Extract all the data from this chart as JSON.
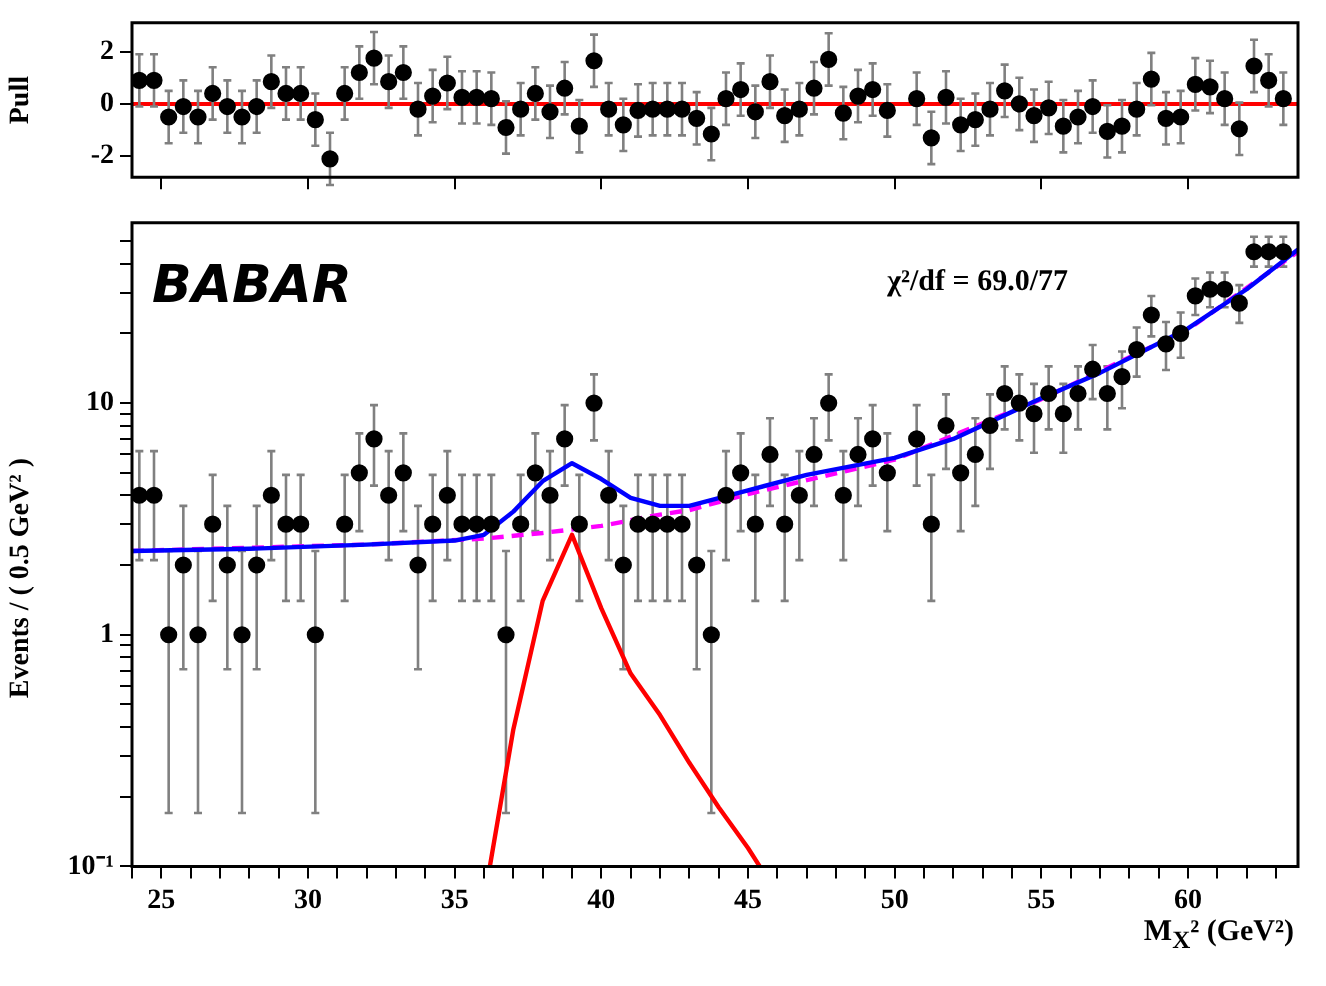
{
  "chart_data": [
    {
      "type": "scatter",
      "ylabel": "Pull",
      "tick_labels": "y",
      "xlim": [
        24,
        63.75
      ],
      "xticks": [
        25,
        30,
        35,
        40,
        45,
        50,
        55,
        60
      ],
      "ylim": [
        -2.8,
        3.1
      ],
      "yticks": [
        -2,
        0,
        2
      ],
      "ref_lines": [
        {
          "axis": "y",
          "value": 0,
          "color": "#ff0000"
        }
      ],
      "x": [
        24.25,
        24.75,
        25.25,
        25.75,
        26.25,
        26.75,
        27.25,
        27.75,
        28.25,
        28.75,
        29.25,
        29.75,
        30.25,
        30.75,
        31.25,
        31.75,
        32.25,
        32.75,
        33.25,
        33.75,
        34.25,
        34.75,
        35.25,
        35.75,
        36.25,
        36.75,
        37.25,
        37.75,
        38.25,
        38.75,
        39.25,
        39.75,
        40.25,
        40.75,
        41.25,
        41.75,
        42.25,
        42.75,
        43.25,
        43.75,
        44.25,
        44.75,
        45.25,
        45.75,
        46.25,
        46.75,
        47.25,
        47.75,
        48.25,
        48.75,
        49.25,
        49.75,
        50.25,
        50.75,
        51.25,
        51.75,
        52.25,
        52.75,
        53.25,
        53.75,
        54.25,
        54.75,
        55.25,
        55.75,
        56.25,
        56.75,
        57.25,
        57.75,
        58.25,
        58.75,
        59.25,
        59.75,
        60.25,
        60.75,
        61.25,
        61.75,
        62.25,
        62.75,
        63.25
      ],
      "series": [
        {
          "color": "#000000",
          "marker": "circle",
          "values": [
            0.9,
            0.9,
            -0.5,
            -0.1,
            -0.5,
            0.4,
            -0.1,
            -0.5,
            -0.1,
            0.85,
            0.4,
            0.4,
            -0.6,
            -2.1,
            0.4,
            1.2,
            1.75,
            0.85,
            1.2,
            -0.2,
            0.3,
            0.8,
            0.25,
            0.25,
            0.2,
            -0.9,
            -0.2,
            0.4,
            -0.3,
            0.6,
            -0.85,
            1.65,
            -0.2,
            -0.8,
            -0.25,
            -0.2,
            -0.2,
            -0.2,
            -0.55,
            -1.15,
            0.2,
            0.55,
            -0.3,
            0.85,
            -0.45,
            -0.2,
            0.6,
            1.7,
            -0.35,
            0.3,
            0.55,
            -0.25,
            null,
            0.2,
            -1.3,
            0.25,
            -0.8,
            -0.6,
            -0.2,
            0.5,
            0,
            -0.45,
            -0.15,
            -0.85,
            -0.5,
            -0.1,
            -1.05,
            -0.85,
            -0.2,
            0.95,
            -0.55,
            -0.5,
            0.75,
            0.65,
            0.2,
            -0.95,
            1.45,
            0.9,
            0.2
          ],
          "errors": [
            1,
            1,
            1,
            1,
            1,
            1,
            1,
            1,
            1,
            1,
            1,
            1,
            1,
            1,
            1,
            1,
            1,
            1,
            1,
            1,
            1,
            1,
            1,
            1,
            1,
            1,
            1,
            1,
            1,
            1,
            1,
            1,
            1,
            1,
            1,
            1,
            1,
            1,
            1,
            1,
            1,
            1,
            1,
            1,
            1,
            1,
            1,
            1,
            1,
            1,
            1,
            1,
            null,
            1,
            1,
            1,
            1,
            1,
            1,
            1,
            1,
            1,
            1,
            1,
            1,
            1,
            1,
            1,
            1,
            1,
            1,
            1,
            1,
            1,
            1,
            1,
            1,
            1,
            1
          ]
        }
      ]
    },
    {
      "type": "scatter",
      "ylabel": "Events / ( 0.5 GeV² )",
      "xlabel": "M$_{X}$² (GeV²)",
      "log": "y",
      "annotations": [
        "BABAR",
        "χ²/df = 69.0/77"
      ],
      "xlim": [
        24,
        63.75
      ],
      "xticks": [
        {
          "value": 24,
          "label": null
        },
        25,
        {
          "value": 26,
          "label": null
        },
        {
          "value": 27,
          "label": null
        },
        {
          "value": 28,
          "label": null
        },
        {
          "value": 29,
          "label": null
        },
        30,
        {
          "value": 31,
          "label": null
        },
        {
          "value": 32,
          "label": null
        },
        {
          "value": 33,
          "label": null
        },
        {
          "value": 34,
          "label": null
        },
        35,
        {
          "value": 36,
          "label": null
        },
        {
          "value": 37,
          "label": null
        },
        {
          "value": 38,
          "label": null
        },
        {
          "value": 39,
          "label": null
        },
        40,
        {
          "value": 41,
          "label": null
        },
        {
          "value": 42,
          "label": null
        },
        {
          "value": 43,
          "label": null
        },
        {
          "value": 44,
          "label": null
        },
        45,
        {
          "value": 46,
          "label": null
        },
        {
          "value": 47,
          "label": null
        },
        {
          "value": 48,
          "label": null
        },
        {
          "value": 49,
          "label": null
        },
        50,
        {
          "value": 51,
          "label": null
        },
        {
          "value": 52,
          "label": null
        },
        {
          "value": 53,
          "label": null
        },
        {
          "value": 54,
          "label": null
        },
        55,
        {
          "value": 56,
          "label": null
        },
        {
          "value": 57,
          "label": null
        },
        {
          "value": 58,
          "label": null
        },
        {
          "value": 59,
          "label": null
        },
        60,
        {
          "value": 61,
          "label": null
        },
        {
          "value": 62,
          "label": null
        },
        {
          "value": 63,
          "label": null
        }
      ],
      "ylim": [
        0.1,
        60
      ],
      "yticks": [
        {
          "value": 0.1,
          "label": "10⁻¹"
        },
        {
          "value": 0.2,
          "label": null
        },
        {
          "value": 0.3,
          "label": null
        },
        {
          "value": 0.4,
          "label": null
        },
        {
          "value": 0.5,
          "label": null
        },
        {
          "value": 0.6,
          "label": null
        },
        {
          "value": 0.7,
          "label": null
        },
        {
          "value": 0.8,
          "label": null
        },
        {
          "value": 0.9,
          "label": null
        },
        1,
        {
          "value": 2,
          "label": null
        },
        {
          "value": 3,
          "label": null
        },
        {
          "value": 4,
          "label": null
        },
        {
          "value": 5,
          "label": null
        },
        {
          "value": 6,
          "label": null
        },
        {
          "value": 7,
          "label": null
        },
        {
          "value": 8,
          "label": null
        },
        {
          "value": 9,
          "label": null
        },
        10,
        {
          "value": 20,
          "label": null
        },
        {
          "value": 30,
          "label": null
        },
        {
          "value": 40,
          "label": null
        },
        {
          "value": 50,
          "label": null
        }
      ],
      "x": [
        24.25,
        24.75,
        25.25,
        25.75,
        26.25,
        26.75,
        27.25,
        27.75,
        28.25,
        28.75,
        29.25,
        29.75,
        30.25,
        30.75,
        31.25,
        31.75,
        32.25,
        32.75,
        33.25,
        33.75,
        34.25,
        34.75,
        35.25,
        35.75,
        36.25,
        36.75,
        37.25,
        37.75,
        38.25,
        38.75,
        39.25,
        39.75,
        40.25,
        40.75,
        41.25,
        41.75,
        42.25,
        42.75,
        43.25,
        43.75,
        44.25,
        44.75,
        45.25,
        45.75,
        46.25,
        46.75,
        47.25,
        47.75,
        48.25,
        48.75,
        49.25,
        49.75,
        50.25,
        50.75,
        51.25,
        51.75,
        52.25,
        52.75,
        53.25,
        53.75,
        54.25,
        54.75,
        55.25,
        55.75,
        56.25,
        56.75,
        57.25,
        57.75,
        58.25,
        58.75,
        59.25,
        59.75,
        60.25,
        60.75,
        61.25,
        61.75,
        62.25,
        62.75,
        63.25
      ],
      "series": [
        {
          "color": "#000000",
          "marker": "circle",
          "values": [
            4,
            4,
            1,
            2,
            1,
            3,
            2,
            1,
            2,
            4,
            3,
            3,
            1,
            null,
            3,
            5,
            7,
            4,
            5,
            2,
            3,
            4,
            3,
            3,
            3,
            1,
            3,
            5,
            4,
            7,
            3,
            10,
            4,
            2,
            3,
            3,
            3,
            3,
            2,
            1,
            4,
            5,
            3,
            6,
            3,
            4,
            6,
            10,
            4,
            6,
            7,
            5,
            null,
            7,
            3,
            8,
            5,
            6,
            8,
            11,
            10,
            9,
            11,
            9,
            11,
            14,
            11,
            13,
            17,
            24,
            18,
            20,
            29,
            31,
            31,
            27,
            45,
            45,
            45
          ],
          "errors": [
            [
              2.1,
              6.2
            ],
            [
              2.1,
              6.2
            ],
            [
              0.17,
              2.3
            ],
            [
              0.71,
              3.6
            ],
            [
              0.17,
              2.3
            ],
            [
              1.4,
              4.9
            ],
            [
              0.71,
              3.6
            ],
            [
              0.17,
              2.3
            ],
            [
              0.71,
              3.6
            ],
            [
              2.1,
              6.2
            ],
            [
              1.4,
              4.9
            ],
            [
              1.4,
              4.9
            ],
            [
              0.17,
              2.3
            ],
            null,
            [
              1.4,
              4.9
            ],
            [
              2.8,
              7.4
            ],
            [
              4.4,
              9.8
            ],
            [
              2.1,
              6.2
            ],
            [
              2.8,
              7.4
            ],
            [
              0.71,
              3.6
            ],
            [
              1.4,
              4.9
            ],
            [
              2.1,
              6.2
            ],
            [
              1.4,
              4.9
            ],
            [
              1.4,
              4.9
            ],
            [
              1.4,
              4.9
            ],
            [
              0.17,
              2.3
            ],
            [
              1.4,
              4.9
            ],
            [
              2.8,
              7.4
            ],
            [
              2.1,
              6.2
            ],
            [
              4.4,
              9.8
            ],
            [
              1.4,
              4.9
            ],
            [
              6.9,
              13.3
            ],
            [
              2.1,
              6.2
            ],
            [
              0.71,
              3.6
            ],
            [
              1.4,
              4.9
            ],
            [
              1.4,
              4.9
            ],
            [
              1.4,
              4.9
            ],
            [
              1.4,
              4.9
            ],
            [
              0.71,
              3.6
            ],
            [
              0.17,
              2.3
            ],
            [
              2.1,
              6.2
            ],
            [
              2.8,
              7.4
            ],
            [
              1.4,
              4.9
            ],
            [
              3.6,
              8.6
            ],
            [
              1.4,
              4.9
            ],
            [
              2.1,
              6.2
            ],
            [
              3.6,
              8.6
            ],
            [
              6.9,
              13.3
            ],
            [
              2.1,
              6.2
            ],
            [
              3.6,
              8.6
            ],
            [
              4.4,
              9.8
            ],
            [
              2.8,
              7.4
            ],
            null,
            [
              4.4,
              9.8
            ],
            [
              1.4,
              4.9
            ],
            [
              5.2,
              10.9
            ],
            [
              2.8,
              7.4
            ],
            [
              3.6,
              8.6
            ],
            [
              5.2,
              10.9
            ],
            [
              7.7,
              14.4
            ],
            [
              6.9,
              13.3
            ],
            [
              6.1,
              12.1
            ],
            [
              7.7,
              14.4
            ],
            [
              6.1,
              12.1
            ],
            [
              7.7,
              14.4
            ],
            [
              10.4,
              17.8
            ],
            [
              7.7,
              14.4
            ],
            [
              9.5,
              16.7
            ],
            [
              13,
              21.2
            ],
            [
              19.4,
              29
            ],
            [
              13.9,
              22.4
            ],
            [
              15.7,
              24.6
            ],
            [
              24,
              34.5
            ],
            [
              25.9,
              36.6
            ],
            [
              25.9,
              36.6
            ],
            [
              22.2,
              32.3
            ],
            [
              38.8,
              52.2
            ],
            [
              38.8,
              52.2
            ],
            [
              38.8,
              52.2
            ]
          ]
        },
        {
          "type": "line",
          "color": "#0000ff",
          "x": [
            24,
            28,
            32,
            35,
            36,
            37,
            38,
            39,
            40,
            41,
            42,
            43,
            45,
            47,
            50,
            52,
            55,
            57,
            60,
            62,
            63.75
          ],
          "values": [
            2.3,
            2.35,
            2.45,
            2.55,
            2.7,
            3.4,
            4.6,
            5.5,
            4.7,
            3.9,
            3.6,
            3.6,
            4.2,
            4.9,
            5.8,
            7.0,
            10.5,
            13.5,
            21,
            31,
            46
          ]
        },
        {
          "type": "line",
          "color": "#ff00ff",
          "line_style": "dashed",
          "x": [
            24,
            32,
            36,
            38,
            40,
            42,
            43,
            45,
            50,
            55,
            60,
            63.75
          ],
          "values": [
            2.3,
            2.45,
            2.6,
            2.75,
            2.95,
            3.3,
            3.45,
            4.05,
            5.7,
            10.4,
            20.8,
            45
          ]
        },
        {
          "type": "line",
          "color": "#ff0000",
          "x": [
            36.2,
            37,
            38,
            39,
            40,
            41,
            42,
            43,
            44,
            45,
            45.4
          ],
          "values": [
            0.1,
            0.39,
            1.4,
            2.7,
            1.3,
            0.68,
            0.45,
            0.28,
            0.18,
            0.12,
            0.1
          ]
        }
      ]
    }
  ]
}
